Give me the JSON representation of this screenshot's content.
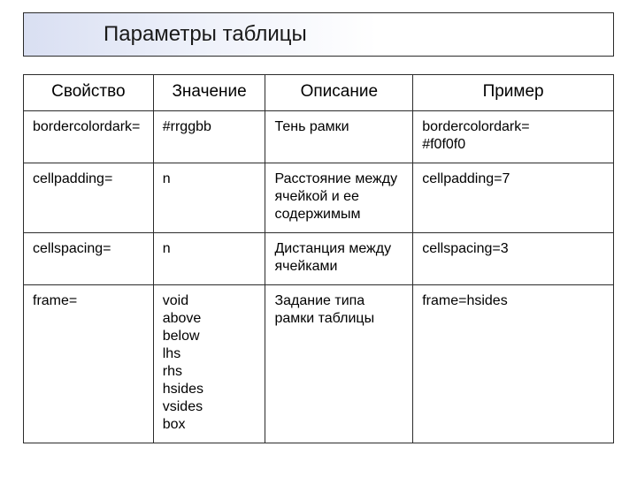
{
  "title": "Параметры таблицы",
  "table": {
    "type": "table",
    "border_color": "#2b2b2b",
    "background_color": "#ffffff",
    "header_fontsize": 19,
    "cell_fontsize": 16,
    "font_family": "Arial",
    "column_widths_pct": [
      22,
      19,
      25,
      34
    ],
    "col_alignments": [
      "left",
      "left",
      "left",
      "left"
    ],
    "header_alignment": "center",
    "columns": [
      "Свойство",
      "Значение",
      "Описание",
      "Пример"
    ],
    "rows": [
      [
        "bordercolordark=",
        "#rrggbb",
        "Тень рамки",
        "bordercolordark=\n#f0f0f0"
      ],
      [
        "cellpadding=",
        "n",
        "Расстояние между ячейкой и ее содержимым",
        "cellpadding=7"
      ],
      [
        "cellspacing=",
        "n",
        "Дистанция между ячейками",
        "cellspacing=3"
      ],
      [
        "frame=",
        "void\nabove\nbelow\nlhs\nrhs\nhsides\nvsides\nbox",
        "Задание типа рамки таблицы",
        "frame=hsides"
      ]
    ]
  },
  "title_bar": {
    "gradient_from": "#d9dff2",
    "gradient_to": "#ffffff",
    "border_color": "#2b2b2b",
    "title_fontsize": 24,
    "title_color": "#1a1a1a"
  }
}
